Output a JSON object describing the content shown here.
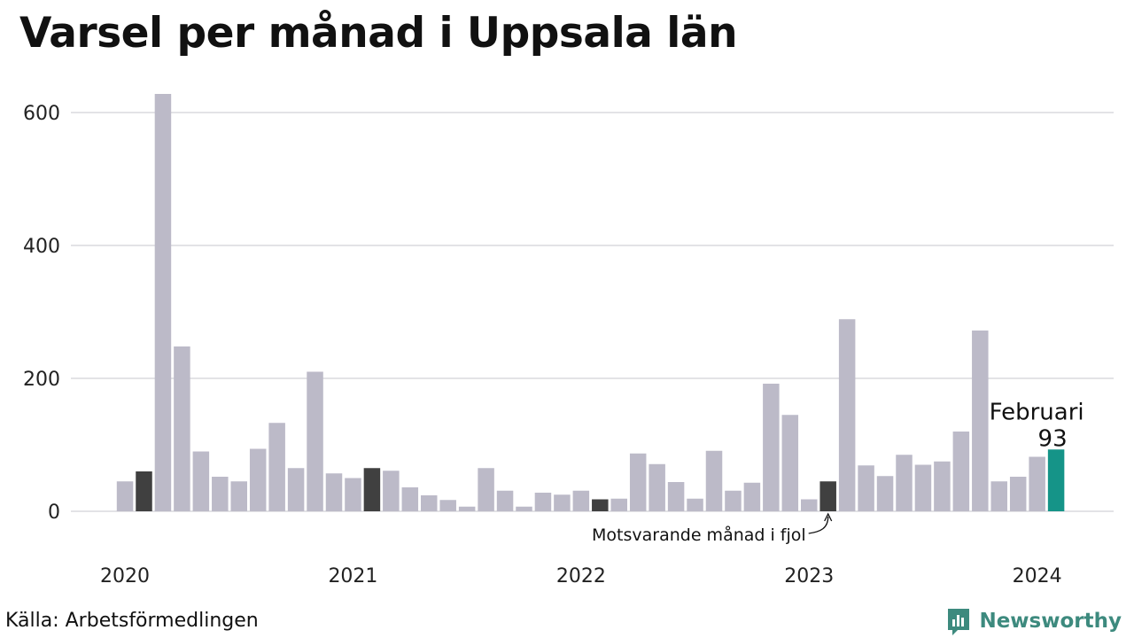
{
  "chart_data": {
    "type": "bar",
    "title": "Varsel per månad i Uppsala län",
    "xlabel": "",
    "ylabel": "",
    "ylim": [
      0,
      660
    ],
    "yticks": [
      0,
      200,
      400,
      600
    ],
    "year_labels": [
      "2020",
      "2021",
      "2022",
      "2023",
      "2024"
    ],
    "values": [
      45,
      60,
      628,
      248,
      90,
      52,
      45,
      94,
      133,
      65,
      210,
      57,
      50,
      65,
      61,
      36,
      24,
      17,
      7,
      65,
      31,
      7,
      28,
      25,
      31,
      18,
      19,
      87,
      71,
      44,
      19,
      91,
      31,
      43,
      192,
      145,
      18,
      45,
      289,
      69,
      53,
      85,
      70,
      75,
      120,
      272,
      45,
      52,
      82,
      93
    ],
    "same_month_previous_years": [
      1,
      13,
      25,
      37
    ],
    "latest_index": 49,
    "annotation": "Motsvarande månad i fjol",
    "highlight": {
      "month": "Februari",
      "value": "93"
    },
    "colors": {
      "bar": "#bcbac8",
      "same_month": "#404040",
      "latest": "#159488",
      "grid": "#e3e3e6"
    },
    "grid": true
  },
  "footer": {
    "source": "Källa: Arbetsförmedlingen",
    "brand": "Newsworthy",
    "brand_icon": "bar-chart-speech-bubble-icon",
    "brand_color": "#3d8a7e"
  }
}
